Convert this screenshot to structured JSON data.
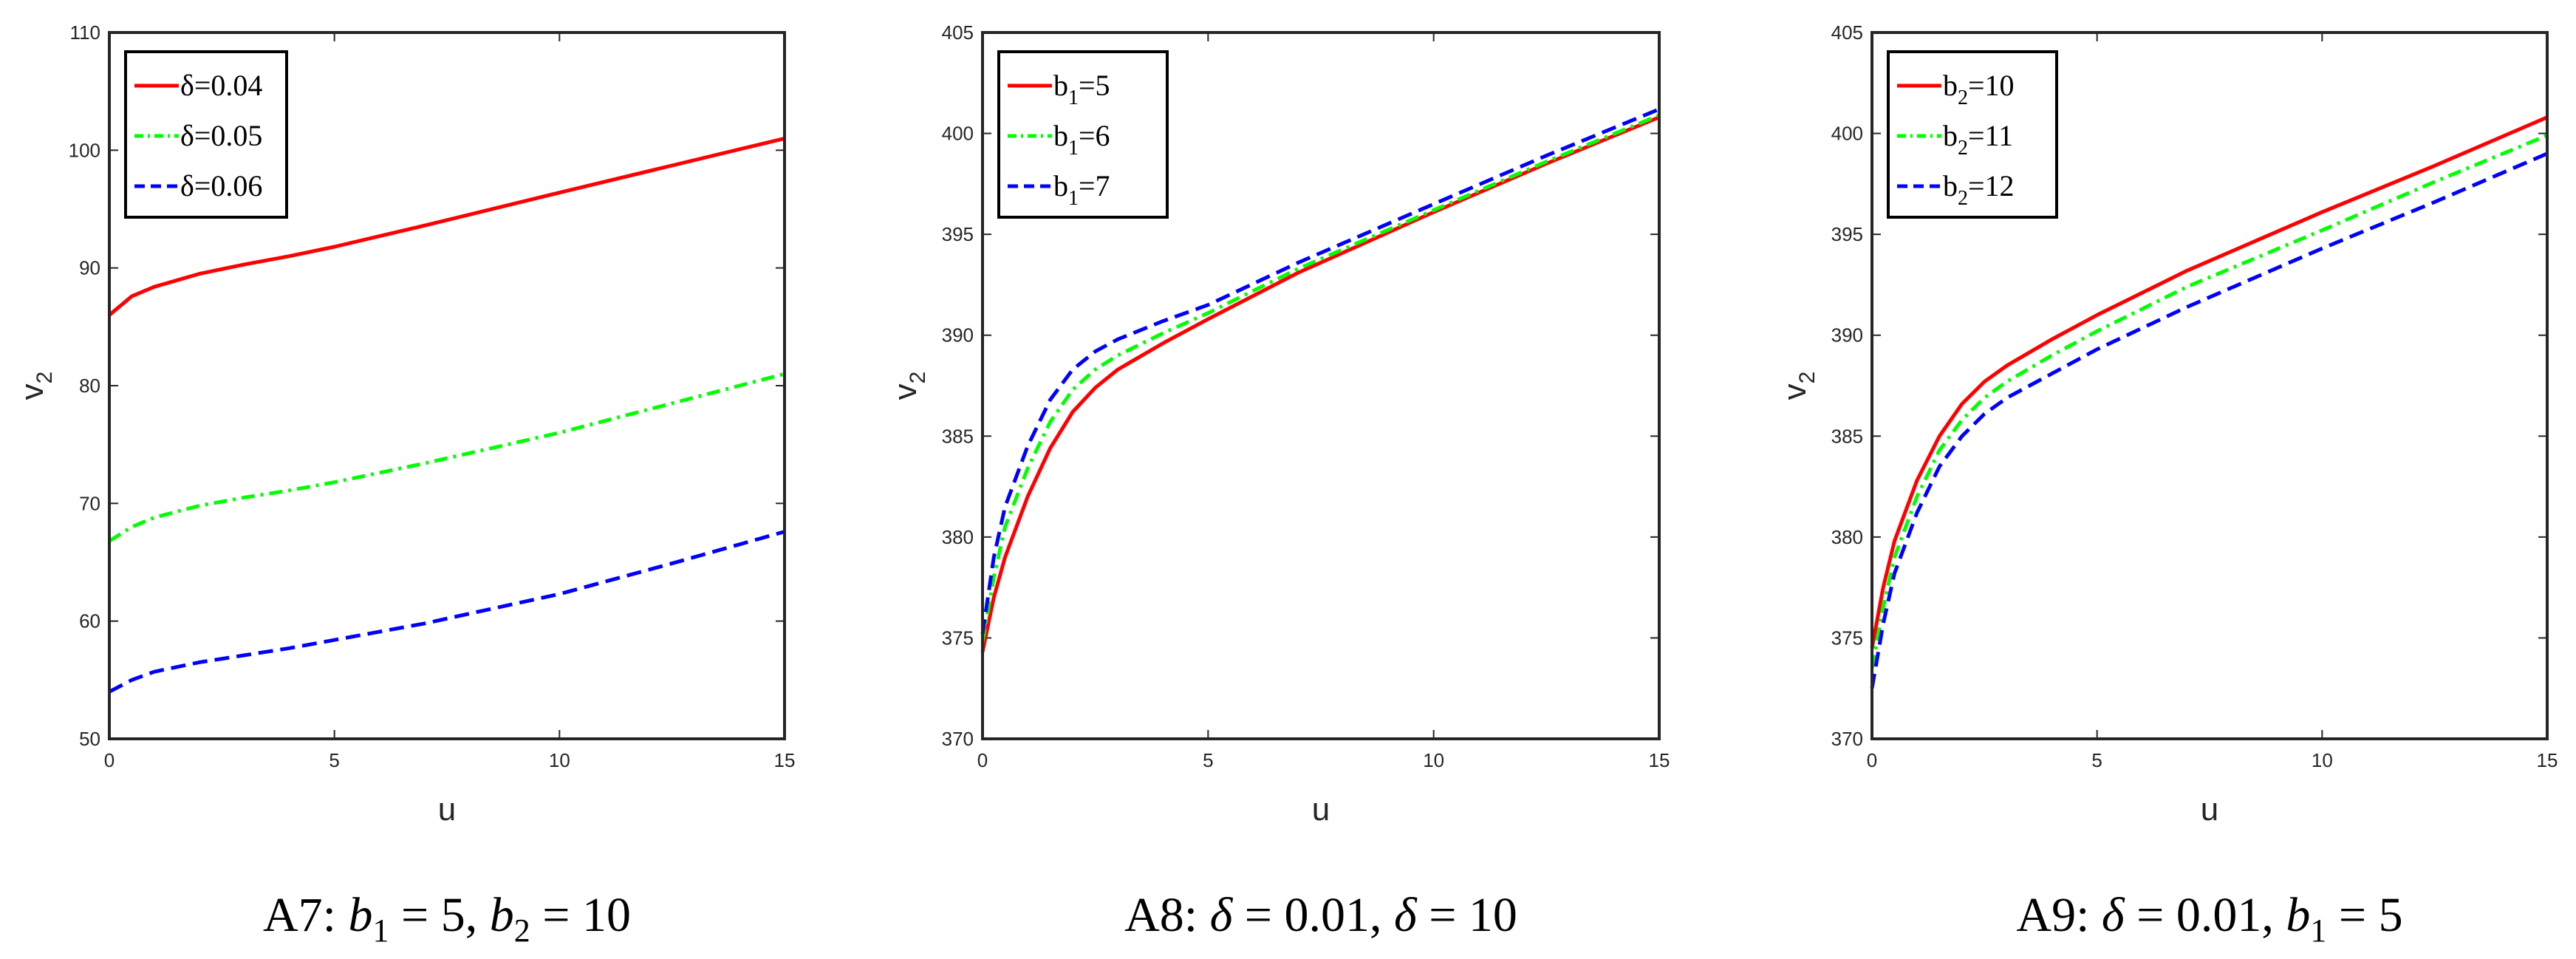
{
  "chart_data": [
    {
      "type": "line",
      "caption": "A7: b1 = 5, b2 = 10",
      "caption_parts": {
        "prefix": "A7: ",
        "v1": "b",
        "s1": "1",
        "eq1": " = 5, ",
        "v2": "b",
        "s2": "2",
        "eq2": " = 10"
      },
      "xlabel": "u",
      "ylabel": {
        "base": "v",
        "sub": "2"
      },
      "xlim": [
        0,
        15
      ],
      "ylim": [
        50,
        110
      ],
      "xticks": [
        0,
        5,
        10,
        15
      ],
      "yticks": [
        50,
        60,
        70,
        80,
        90,
        100,
        110
      ],
      "legend_position": "top-left",
      "series": [
        {
          "legend": {
            "prefix": "δ=0.04"
          },
          "color": "#ff0000",
          "dash": "solid",
          "x": [
            0,
            0.5,
            1,
            2,
            3,
            4,
            5,
            7,
            10,
            12.5,
            15
          ],
          "y": [
            86.0,
            87.6,
            88.4,
            89.5,
            90.3,
            91.0,
            91.8,
            93.6,
            96.4,
            98.7,
            101.0
          ]
        },
        {
          "legend": {
            "prefix": "δ=0.05"
          },
          "color": "#00ff00",
          "dash": "dashdot",
          "x": [
            0,
            0.5,
            1,
            2,
            3,
            4,
            5,
            7,
            10,
            12.5,
            15
          ],
          "y": [
            66.8,
            68.0,
            68.8,
            69.8,
            70.5,
            71.1,
            71.8,
            73.4,
            76.0,
            78.5,
            81.0
          ]
        },
        {
          "legend": {
            "prefix": "δ=0.06"
          },
          "color": "#0000ff",
          "dash": "dashed",
          "x": [
            0,
            0.5,
            1,
            2,
            3,
            4,
            5,
            7,
            10,
            12.5,
            15
          ],
          "y": [
            54.0,
            55.0,
            55.7,
            56.5,
            57.1,
            57.7,
            58.4,
            59.8,
            62.3,
            64.9,
            67.6
          ]
        }
      ]
    },
    {
      "type": "line",
      "caption": "A8: δ = 0.01, δ = 10",
      "caption_parts": {
        "prefix": "A8: ",
        "v1": "δ",
        "s1": "",
        "eq1": " = 0.01, ",
        "v2": "δ",
        "s2": "",
        "eq2": " = 10"
      },
      "xlabel": "u",
      "ylabel": {
        "base": "v",
        "sub": "2"
      },
      "xlim": [
        0,
        15
      ],
      "ylim": [
        370,
        405
      ],
      "xticks": [
        0,
        5,
        10,
        15
      ],
      "yticks": [
        370,
        375,
        380,
        385,
        390,
        395,
        400,
        405
      ],
      "legend_position": "top-left",
      "series": [
        {
          "legend": {
            "prefix": "b",
            "sub": "1",
            "suffix": "=5"
          },
          "color": "#ff0000",
          "dash": "solid",
          "x": [
            0,
            0.25,
            0.5,
            1,
            1.5,
            2,
            2.5,
            3,
            4,
            5,
            7,
            10,
            12.5,
            15
          ],
          "y": [
            374.3,
            377.0,
            379.0,
            382.0,
            384.4,
            386.2,
            387.4,
            388.3,
            389.6,
            390.8,
            393.1,
            396.1,
            398.5,
            400.8
          ]
        },
        {
          "legend": {
            "prefix": "b",
            "sub": "1",
            "suffix": "=6"
          },
          "color": "#00ff00",
          "dash": "dashdot",
          "x": [
            0,
            0.25,
            0.5,
            1,
            1.5,
            2,
            2.5,
            3,
            4,
            5,
            7,
            10,
            12.5,
            15
          ],
          "y": [
            374.8,
            378.0,
            380.5,
            383.4,
            385.7,
            387.3,
            388.3,
            389.0,
            390.1,
            391.1,
            393.3,
            396.2,
            398.6,
            400.9
          ]
        },
        {
          "legend": {
            "prefix": "b",
            "sub": "1",
            "suffix": "=7"
          },
          "color": "#0000ff",
          "dash": "dashed",
          "x": [
            0,
            0.25,
            0.5,
            1,
            1.5,
            2,
            2.5,
            3,
            4,
            5,
            7,
            10,
            12.5,
            15
          ],
          "y": [
            375.2,
            379.0,
            381.5,
            384.5,
            386.8,
            388.3,
            389.2,
            389.8,
            390.7,
            391.5,
            393.6,
            396.5,
            398.9,
            401.2
          ]
        }
      ]
    },
    {
      "type": "line",
      "caption": "A9: δ = 0.01, b1 = 5",
      "caption_parts": {
        "prefix": "A9: ",
        "v1": "δ",
        "s1": "",
        "eq1": " = 0.01, ",
        "v2": "b",
        "s2": "1",
        "eq2": " = 5"
      },
      "xlabel": "u",
      "ylabel": {
        "base": "v",
        "sub": "2"
      },
      "xlim": [
        0,
        15
      ],
      "ylim": [
        370,
        405
      ],
      "xticks": [
        0,
        5,
        10,
        15
      ],
      "yticks": [
        370,
        375,
        380,
        385,
        390,
        395,
        400,
        405
      ],
      "legend_position": "top-left",
      "series": [
        {
          "legend": {
            "prefix": "b",
            "sub": "2",
            "suffix": "=10"
          },
          "color": "#ff0000",
          "dash": "solid",
          "x": [
            0,
            0.25,
            0.5,
            1,
            1.5,
            2,
            2.5,
            3,
            4,
            5,
            7,
            10,
            12.5,
            15
          ],
          "y": [
            374.5,
            377.5,
            379.8,
            382.8,
            385.0,
            386.6,
            387.7,
            388.5,
            389.8,
            391.0,
            393.2,
            396.1,
            398.4,
            400.8
          ]
        },
        {
          "legend": {
            "prefix": "b",
            "sub": "2",
            "suffix": "=11"
          },
          "color": "#00ff00",
          "dash": "dashdot",
          "x": [
            0,
            0.25,
            0.5,
            1,
            1.5,
            2,
            2.5,
            3,
            4,
            5,
            7,
            10,
            12.5,
            15
          ],
          "y": [
            373.5,
            376.5,
            379.0,
            382.0,
            384.3,
            385.8,
            386.9,
            387.7,
            389.0,
            390.2,
            392.4,
            395.2,
            397.6,
            399.9
          ]
        },
        {
          "legend": {
            "prefix": "b",
            "sub": "2",
            "suffix": "=12"
          },
          "color": "#0000ff",
          "dash": "dashed",
          "x": [
            0,
            0.25,
            0.5,
            1,
            1.5,
            2,
            2.5,
            3,
            4,
            5,
            7,
            10,
            12.5,
            15
          ],
          "y": [
            372.5,
            375.7,
            378.2,
            381.2,
            383.5,
            385.0,
            386.1,
            386.9,
            388.1,
            389.3,
            391.4,
            394.3,
            396.6,
            399.0
          ]
        }
      ]
    }
  ]
}
